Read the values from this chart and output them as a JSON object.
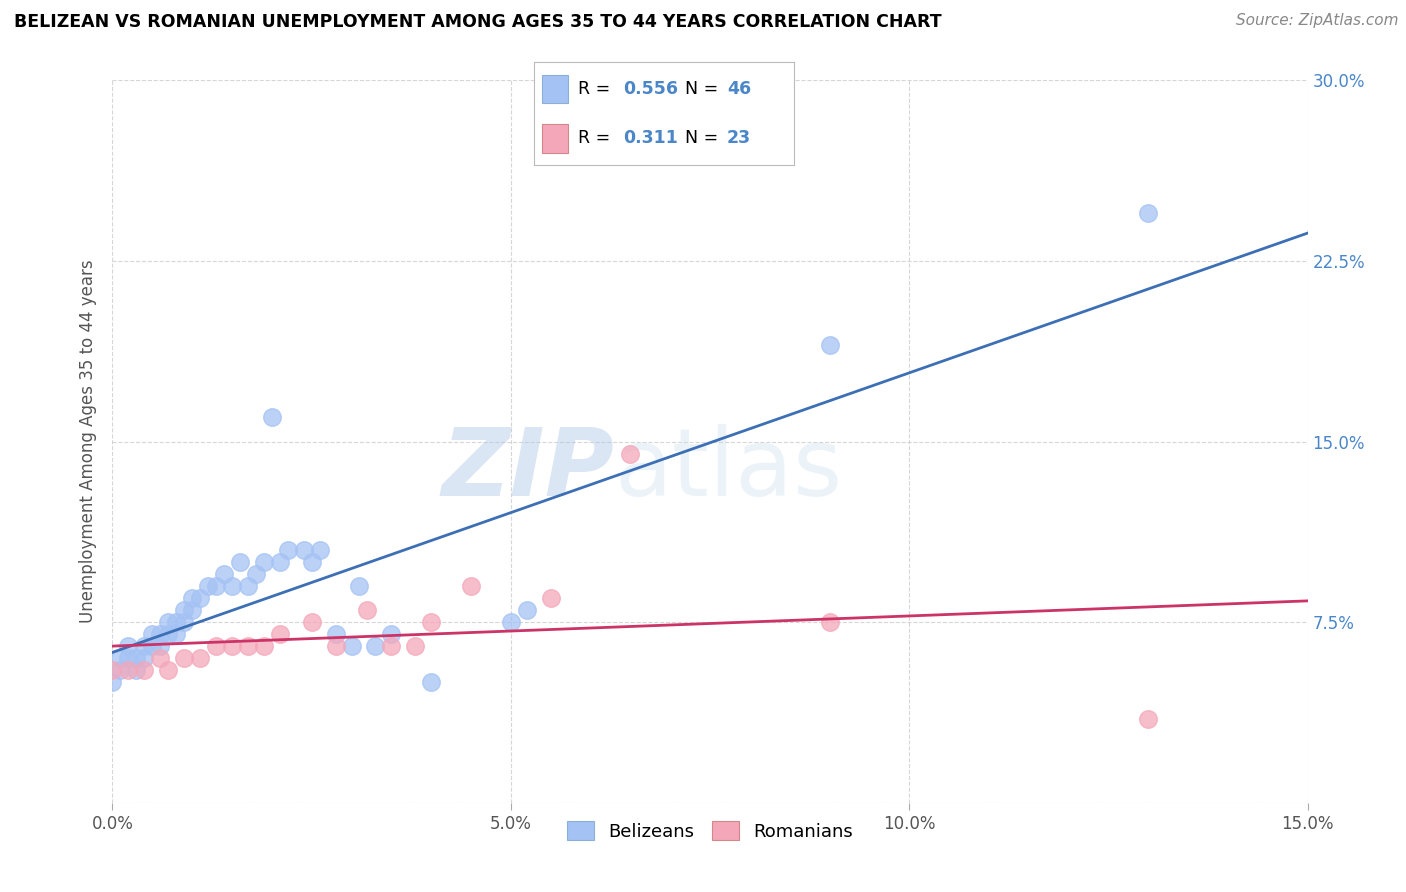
{
  "title": "BELIZEAN VS ROMANIAN UNEMPLOYMENT AMONG AGES 35 TO 44 YEARS CORRELATION CHART",
  "source": "Source: ZipAtlas.com",
  "ylabel": "Unemployment Among Ages 35 to 44 years",
  "xlim": [
    0.0,
    0.15
  ],
  "ylim": [
    0.0,
    0.3
  ],
  "xticks": [
    0.0,
    0.05,
    0.1,
    0.15
  ],
  "xtick_labels": [
    "0.0%",
    "5.0%",
    "10.0%",
    "15.0%"
  ],
  "yticks": [
    0.0,
    0.075,
    0.15,
    0.225,
    0.3
  ],
  "ytick_labels": [
    "",
    "7.5%",
    "15.0%",
    "22.5%",
    "30.0%"
  ],
  "belizean_color": "#a4c2f4",
  "romanian_color": "#f4a7b9",
  "belizean_line_color": "#3d6fb5",
  "romanian_line_color": "#cc3366",
  "tick_color": "#4a86c8",
  "legend_R1": "0.556",
  "legend_N1": "46",
  "legend_R2": "0.311",
  "legend_N2": "23",
  "watermark_zip": "ZIP",
  "watermark_atlas": "atlas",
  "background_color": "#ffffff",
  "grid_color": "#cccccc",
  "belizean_x": [
    0.0,
    0.001,
    0.001,
    0.002,
    0.002,
    0.003,
    0.003,
    0.004,
    0.004,
    0.005,
    0.005,
    0.006,
    0.006,
    0.007,
    0.007,
    0.008,
    0.008,
    0.009,
    0.009,
    0.01,
    0.01,
    0.011,
    0.012,
    0.013,
    0.014,
    0.015,
    0.016,
    0.017,
    0.018,
    0.019,
    0.02,
    0.021,
    0.022,
    0.024,
    0.025,
    0.026,
    0.028,
    0.03,
    0.031,
    0.033,
    0.035,
    0.04,
    0.05,
    0.052,
    0.09,
    0.13
  ],
  "belizean_y": [
    0.05,
    0.055,
    0.06,
    0.06,
    0.065,
    0.055,
    0.06,
    0.06,
    0.065,
    0.065,
    0.07,
    0.065,
    0.07,
    0.07,
    0.075,
    0.07,
    0.075,
    0.075,
    0.08,
    0.08,
    0.085,
    0.085,
    0.09,
    0.09,
    0.095,
    0.09,
    0.1,
    0.09,
    0.095,
    0.1,
    0.16,
    0.1,
    0.105,
    0.105,
    0.1,
    0.105,
    0.07,
    0.065,
    0.09,
    0.065,
    0.07,
    0.05,
    0.075,
    0.08,
    0.19,
    0.245
  ],
  "romanian_x": [
    0.0,
    0.002,
    0.004,
    0.006,
    0.007,
    0.009,
    0.011,
    0.013,
    0.015,
    0.017,
    0.019,
    0.021,
    0.025,
    0.028,
    0.032,
    0.035,
    0.038,
    0.04,
    0.045,
    0.055,
    0.065,
    0.09,
    0.13
  ],
  "romanian_y": [
    0.055,
    0.055,
    0.055,
    0.06,
    0.055,
    0.06,
    0.06,
    0.065,
    0.065,
    0.065,
    0.065,
    0.07,
    0.075,
    0.065,
    0.08,
    0.065,
    0.065,
    0.075,
    0.09,
    0.085,
    0.145,
    0.075,
    0.035
  ]
}
